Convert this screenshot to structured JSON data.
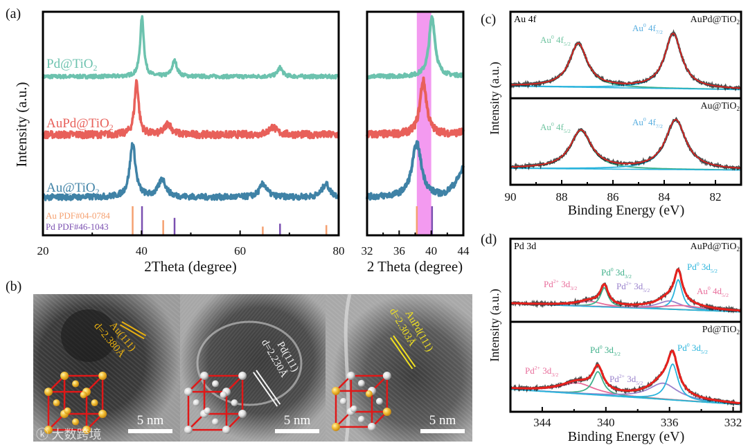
{
  "panel_labels": {
    "a": "(a)",
    "b": "(b)",
    "c": "(c)",
    "d": "(d)"
  },
  "colors": {
    "pd": "#6cc2ae",
    "aupd": "#e8605a",
    "au": "#3f82a6",
    "au_ref": "#f5a070",
    "pd_ref": "#7a4fb0",
    "band": "#f39af0",
    "fit": "#e8211d",
    "green": "#3fb08a",
    "cyan": "#2ab4dc",
    "pink": "#e86c9a",
    "violet": "#9a82cc",
    "au_label_green": "#6fc4a0",
    "au_label_blue": "#58aee0"
  },
  "watermark": "大数跨境",
  "chart_data": [
    {
      "id": "xrd-full",
      "type": "line",
      "xlabel": "2Theta (degree)",
      "ylabel": "Intensity (a.u.)",
      "xlim": [
        20,
        80
      ],
      "ylim": [
        0,
        100
      ],
      "xticks": [
        20,
        40,
        60,
        80
      ],
      "minor_xticks": [
        30,
        50,
        70
      ],
      "series": [
        {
          "name": "Pd@TiO",
          "sub": "2",
          "color_key": "pd",
          "baseline": 71,
          "noise": 0.8,
          "peaks": [
            [
              40.1,
              26.5,
              0.45
            ],
            [
              46.7,
              7,
              0.6
            ],
            [
              68.1,
              4,
              0.6
            ]
          ]
        },
        {
          "name": "AuPd@TiO",
          "sub": "2",
          "color_key": "aupd",
          "baseline": 45,
          "noise": 1.6,
          "peaks": [
            [
              39.0,
              24,
              0.5
            ],
            [
              45.4,
              5,
              0.8
            ],
            [
              66.6,
              3.5,
              0.9
            ]
          ]
        },
        {
          "name": "Au@TiO",
          "sub": "2",
          "color_key": "au",
          "baseline": 17,
          "noise": 1.3,
          "peaks": [
            [
              38.2,
              24,
              0.7
            ],
            [
              44.2,
              8,
              0.9
            ],
            [
              64.7,
              6,
              0.9
            ],
            [
              77.4,
              6,
              0.9
            ]
          ]
        }
      ],
      "references": [
        {
          "name": "Au PDF#04-0784",
          "color_key": "au_ref",
          "lines": [
            [
              38.2,
              100
            ],
            [
              44.4,
              52
            ],
            [
              64.6,
              30
            ],
            [
              77.5,
              35
            ]
          ]
        },
        {
          "name": "Pd PDF#46-1043",
          "color_key": "pd_ref",
          "lines": [
            [
              40.1,
              100
            ],
            [
              46.7,
              60
            ],
            [
              68.1,
              40
            ]
          ]
        }
      ]
    },
    {
      "id": "xrd-zoom",
      "type": "line",
      "xlabel": "2 Theta (degree)",
      "xlim": [
        32,
        44
      ],
      "ylim": [
        0,
        100
      ],
      "xticks": [
        32,
        36,
        40,
        44
      ],
      "minor_xticks": [
        34,
        38,
        42
      ],
      "highlight_band": [
        38.2,
        40.0
      ]
    },
    {
      "id": "xps-au4f",
      "type": "line",
      "title": "Au 4f",
      "xlabel": "Binding Energy (eV)",
      "ylabel": "Intensity (a.u.)",
      "xlim": [
        90,
        81
      ],
      "xticks": [
        90,
        88,
        86,
        84,
        82
      ],
      "minor_xticks": [
        89,
        87,
        85,
        83
      ],
      "subplots": [
        {
          "sample": "AuPd@TiO",
          "sub": "2",
          "ylim": [
            0,
            100
          ],
          "background": [
            14,
            10
          ],
          "components": [
            {
              "label": {
                "base": "Au",
                "sup": "0",
                "mid": " 4f",
                "sub": "5/2"
              },
              "color_key": "green",
              "label_color_key": "au_label_green",
              "center": 87.35,
              "height": 50,
              "width": 0.42
            },
            {
              "label": {
                "base": "Au",
                "sup": "0",
                "mid": " 4f",
                "sub": "7/2"
              },
              "color_key": "cyan",
              "label_color_key": "au_label_blue",
              "center": 83.65,
              "height": 63,
              "width": 0.4
            }
          ]
        },
        {
          "sample": "Au@TiO",
          "sub": "2",
          "ylim": [
            0,
            100
          ],
          "background": [
            19,
            17
          ],
          "components": [
            {
              "label": {
                "base": "Au",
                "sup": "0",
                "mid": " 4f",
                "sub": "5/2"
              },
              "color_key": "green",
              "label_color_key": "au_label_green",
              "center": 87.25,
              "height": 44,
              "width": 0.5
            },
            {
              "label": {
                "base": "Au",
                "sup": "0",
                "mid": " 4f",
                "sub": "7/2"
              },
              "color_key": "cyan",
              "label_color_key": "au_label_blue",
              "center": 83.55,
              "height": 57,
              "width": 0.48
            }
          ]
        }
      ]
    },
    {
      "id": "xps-pd3d",
      "type": "line",
      "title": "Pd 3d",
      "xlabel": "Binding Energy (eV)",
      "ylabel": "Intensity (a.u.)",
      "xlim": [
        346,
        331.5
      ],
      "xticks": [
        344,
        340,
        336,
        332
      ],
      "minor_xticks": [
        342,
        338,
        334
      ],
      "subplots": [
        {
          "sample": "AuPd@TiO",
          "sub": "2",
          "ylim": [
            0,
            100
          ],
          "background": [
            22,
            12
          ],
          "components": [
            {
              "label": {
                "base": "Pd",
                "sup": "2+",
                "mid": " 3d",
                "sub": "3/2"
              },
              "color_key": "pink",
              "center": 341.0,
              "height": 6,
              "width": 1.0
            },
            {
              "label": {
                "base": "Pd",
                "sup": "0",
                "mid": " 3d",
                "sub": "3/2"
              },
              "color_key": "green",
              "center": 340.1,
              "height": 23,
              "width": 0.3
            },
            {
              "label": {
                "base": "Pd",
                "sup": "2+",
                "mid": " 3d",
                "sub": "5/2"
              },
              "color_key": "violet",
              "center": 336.0,
              "height": 10,
              "width": 0.9
            },
            {
              "label": {
                "base": "Pd",
                "sup": "0",
                "mid": " 3d",
                "sub": "5/2"
              },
              "color_key": "cyan",
              "center": 335.45,
              "height": 36,
              "width": 0.3
            },
            {
              "label": {
                "base": "Au",
                "sup": "0",
                "mid": " 4d",
                "sub": "5/2"
              },
              "color_key": "pink",
              "center": 335.2,
              "height": 5,
              "width": 1.6
            }
          ]
        },
        {
          "sample": "Pd@TiO",
          "sub": "2",
          "ylim": [
            0,
            100
          ],
          "background": [
            25,
            8
          ],
          "components": [
            {
              "label": {
                "base": "Pd",
                "sup": "2+",
                "mid": " 3d",
                "sub": "3/2"
              },
              "color_key": "pink",
              "center": 341.8,
              "height": 12,
              "width": 1.3
            },
            {
              "label": {
                "base": "Pd",
                "sup": "0",
                "mid": " 3d",
                "sub": "3/2"
              },
              "color_key": "green",
              "center": 340.5,
              "height": 26,
              "width": 0.4
            },
            {
              "label": {
                "base": "Pd",
                "sup": "2+",
                "mid": " 3d",
                "sub": "5/2"
              },
              "color_key": "violet",
              "center": 336.4,
              "height": 18,
              "width": 1.1
            },
            {
              "label": {
                "base": "Pd",
                "sup": "0",
                "mid": " 3d",
                "sub": "5/2"
              },
              "color_key": "cyan",
              "center": 335.8,
              "height": 40,
              "width": 0.4
            }
          ]
        }
      ]
    }
  ],
  "tem": [
    {
      "phase": "Au(111)",
      "d_spacing": "d=2.380Å",
      "scale_bar": "5 nm",
      "label_color": "#e8b010",
      "atoms": "gold"
    },
    {
      "phase": "Pd(111)",
      "d_spacing": "d=2.230Å",
      "scale_bar": "5 nm",
      "label_color": "#f4f4f4",
      "atoms": "white"
    },
    {
      "phase": "AuPd(111)",
      "d_spacing": "d=2.303Å",
      "scale_bar": "5 nm",
      "label_color": "#f0e020",
      "atoms": "mixed"
    }
  ]
}
